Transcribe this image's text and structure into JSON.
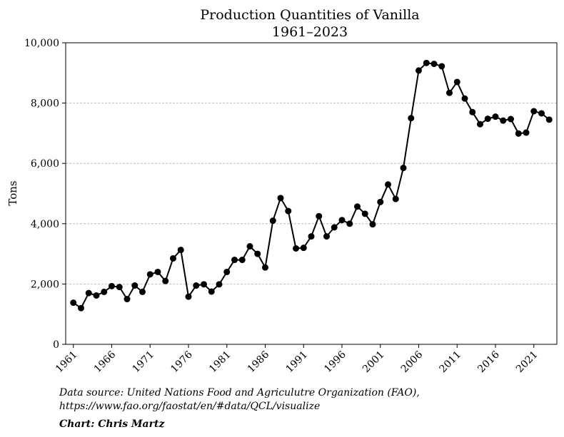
{
  "chart_data": {
    "type": "line",
    "title": "Production Quantities of Vanilla",
    "subtitle": "1961–2023",
    "xlabel": "",
    "ylabel": "Tons",
    "xlim": [
      1960,
      2024
    ],
    "ylim": [
      0,
      10000
    ],
    "x_ticks": [
      1961,
      1966,
      1971,
      1976,
      1981,
      1986,
      1991,
      1996,
      2001,
      2006,
      2011,
      2016,
      2021
    ],
    "y_ticks": [
      0,
      2000,
      4000,
      6000,
      8000,
      10000
    ],
    "y_tick_labels": [
      "0",
      "2,000",
      "4,000",
      "6,000",
      "8,000",
      "10,000"
    ],
    "grid": "horizontal dashed",
    "line_color": "#000000",
    "x": [
      1961,
      1962,
      1963,
      1964,
      1965,
      1966,
      1967,
      1968,
      1969,
      1970,
      1971,
      1972,
      1973,
      1974,
      1975,
      1976,
      1977,
      1978,
      1979,
      1980,
      1981,
      1982,
      1983,
      1984,
      1985,
      1986,
      1987,
      1988,
      1989,
      1990,
      1991,
      1992,
      1993,
      1994,
      1995,
      1996,
      1997,
      1998,
      1999,
      2000,
      2001,
      2002,
      2003,
      2004,
      2005,
      2006,
      2007,
      2008,
      2009,
      2010,
      2011,
      2012,
      2013,
      2014,
      2015,
      2016,
      2017,
      2018,
      2019,
      2020,
      2021,
      2022,
      2023
    ],
    "y": [
      1380,
      1200,
      1700,
      1620,
      1740,
      1930,
      1900,
      1500,
      1950,
      1740,
      2320,
      2400,
      2100,
      2850,
      3130,
      1580,
      1950,
      1990,
      1750,
      1990,
      2400,
      2800,
      2800,
      3250,
      3000,
      2550,
      4100,
      4850,
      4420,
      3180,
      3200,
      3580,
      4250,
      3580,
      3880,
      4120,
      4000,
      4570,
      4330,
      3980,
      4720,
      5300,
      4820,
      5850,
      7500,
      9080,
      9330,
      9300,
      9220,
      8340,
      8700,
      8150,
      7700,
      7300,
      7480,
      7550,
      7420,
      7470,
      6990,
      7020,
      7730,
      7660,
      7450
    ]
  },
  "footer": {
    "source_line1": "Data source: United Nations Food and Agriculutre Organization (FAO),",
    "source_line2": "https://www.fao.org/faostat/en/#data/QCL/visualize",
    "credit": "Chart: Chris Martz"
  }
}
